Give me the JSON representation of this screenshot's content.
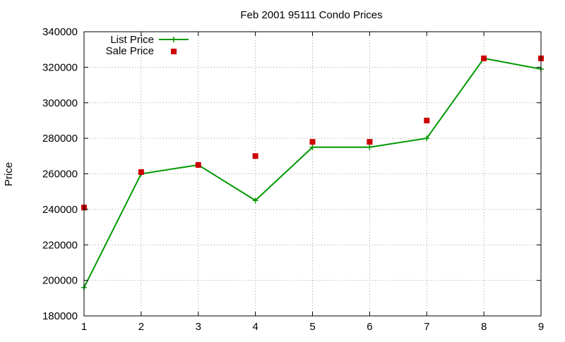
{
  "chart_data": {
    "type": "line",
    "title": "Feb 2001 95111 Condo Prices",
    "xlabel": "",
    "ylabel": "Price",
    "xlim": [
      1,
      9
    ],
    "ylim": [
      180000,
      340000
    ],
    "x_ticks": [
      1,
      2,
      3,
      4,
      5,
      6,
      7,
      8,
      9
    ],
    "y_ticks": [
      180000,
      200000,
      220000,
      240000,
      260000,
      280000,
      300000,
      320000,
      340000
    ],
    "grid": true,
    "legend_position": "top-left",
    "series": [
      {
        "name": "List Price",
        "style": "line-with-plus-markers",
        "color": "#009900",
        "x": [
          1,
          2,
          3,
          4,
          5,
          6,
          7,
          8,
          9
        ],
        "values": [
          196000,
          260000,
          265000,
          245000,
          275000,
          275000,
          280000,
          325000,
          319000
        ]
      },
      {
        "name": "Sale Price",
        "style": "square-markers",
        "color": "#cc0000",
        "x": [
          1,
          2,
          3,
          4,
          5,
          6,
          7,
          8,
          9
        ],
        "values": [
          241000,
          261000,
          265000,
          270000,
          278000,
          278000,
          290000,
          325000,
          325000
        ]
      }
    ]
  }
}
